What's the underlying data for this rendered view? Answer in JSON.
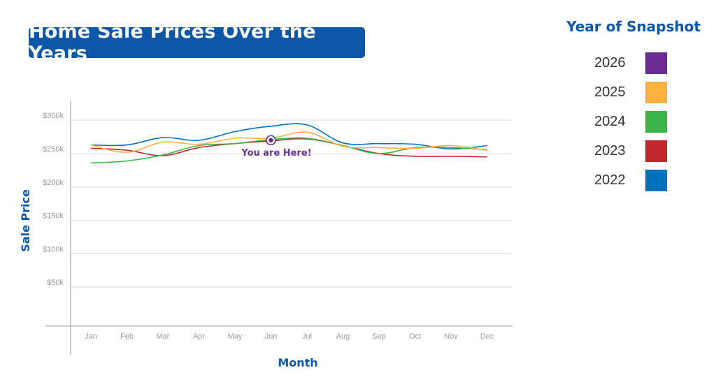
{
  "chart_data": {
    "type": "line",
    "title": "Home Sale Prices Over the Years",
    "xlabel": "Month",
    "ylabel": "Sale Price",
    "categories": [
      "Jan",
      "Feb",
      "Mar",
      "Apr",
      "May",
      "Jun",
      "Jul",
      "Aug",
      "Sep",
      "Oct",
      "Nov",
      "Dec"
    ],
    "y_ticks": [
      {
        "value": 50000,
        "label": "$50k"
      },
      {
        "value": 100000,
        "label": "$100k"
      },
      {
        "value": 150000,
        "label": "$150k"
      },
      {
        "value": 200000,
        "label": "$200k"
      },
      {
        "value": 250000,
        "label": "$250k"
      },
      {
        "value": 300000,
        "label": "$300k"
      }
    ],
    "ylim": [
      0,
      315000
    ],
    "grid": true,
    "legend": {
      "title": "Year of Snapshot",
      "placement": "right"
    },
    "series": [
      {
        "name": "2026",
        "color": "#6a2c91",
        "values": [
          null,
          null,
          null,
          null,
          null,
          270000,
          null,
          null,
          null,
          null,
          null,
          null
        ]
      },
      {
        "name": "2025",
        "color": "#fbb040",
        "values": [
          263000,
          252000,
          267000,
          264000,
          273000,
          273000,
          282000,
          261000,
          259000,
          258000,
          262000,
          255000
        ]
      },
      {
        "name": "2024",
        "color": "#39b54a",
        "values": [
          236000,
          239000,
          248000,
          262000,
          265000,
          271000,
          273000,
          262000,
          250000,
          259000,
          259000,
          256000
        ]
      },
      {
        "name": "2023",
        "color": "#c1272d",
        "values": [
          258000,
          255000,
          247000,
          259000,
          265000,
          269000,
          272000,
          262000,
          250000,
          246000,
          246000,
          245000
        ]
      },
      {
        "name": "2022",
        "color": "#0071bc",
        "values": [
          263000,
          263000,
          274000,
          270000,
          283000,
          291000,
          293000,
          266000,
          265000,
          264000,
          257000,
          262000
        ]
      }
    ],
    "annotations": [
      {
        "text": "You are Here!",
        "x": "Jun",
        "y": 270000,
        "series": "2026"
      }
    ]
  }
}
